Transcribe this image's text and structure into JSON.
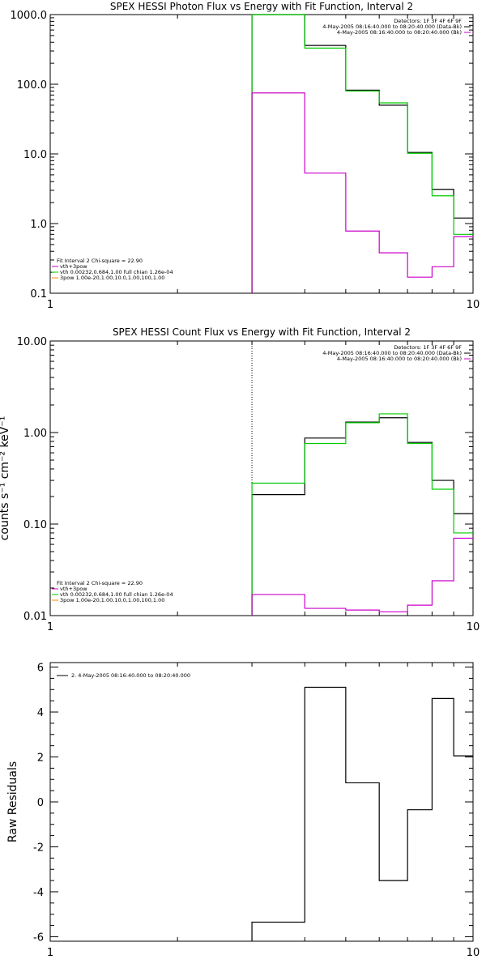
{
  "chart_data": [
    {
      "type": "step-line",
      "title": "SPEX HESSI Photon Flux vs Energy with Fit Function, Interval 2",
      "xlabel": "",
      "ylabel": "",
      "xscale": "log",
      "yscale": "log",
      "xlim": [
        1,
        10
      ],
      "ylim": [
        0.1,
        1000
      ],
      "x_ticks": [
        "1",
        "10"
      ],
      "y_ticks": [
        "0.1",
        "1.0",
        "10.0",
        "100.0",
        "1000.0"
      ],
      "bin_edges": [
        3,
        4,
        5,
        6,
        7,
        8,
        9,
        10
      ],
      "series": [
        {
          "color": "#000000",
          "values": [
            1000,
            360,
            82,
            50,
            10.5,
            3.1,
            1.2
          ]
        },
        {
          "color": "#00cc00",
          "values": [
            1000,
            330,
            80,
            54,
            10.2,
            2.5,
            0.7
          ]
        },
        {
          "color": "#cc00cc",
          "values": [
            75,
            5.3,
            0.78,
            0.38,
            0.17,
            0.24,
            0.65
          ]
        }
      ],
      "vline_x": 3,
      "legend_right": [
        "Detectors: 1F 3F 4F 6F 9F",
        "4-May-2005 08:16:40.000 to 08:20:40.000 (Data-Bk)",
        "4-May-2005 08:16:40.000 to 08:20:40.000 (Bk)"
      ],
      "legend_left": [
        "Fit Interval 2   Chi-square = 22.90",
        "vth+3pow",
        "vth 0.00232,0.684,1.00  full chian 1.26e-04",
        "3pow 1.00e-20,1.00,10.0,1.00,100,1.00"
      ],
      "legend_left_colors": [
        "#000000",
        "#cc00cc",
        "#00cc00",
        "#ff8800"
      ]
    },
    {
      "type": "step-line",
      "title": "SPEX HESSI Count Flux vs Energy with Fit Function, Interval 2",
      "xlabel": "",
      "ylabel": "counts s⁻¹ cm⁻² keV⁻¹",
      "xscale": "log",
      "yscale": "log",
      "xlim": [
        1,
        10
      ],
      "ylim": [
        0.01,
        10
      ],
      "x_ticks": [
        "1",
        "10"
      ],
      "y_ticks": [
        "0.01",
        "0.10",
        "1.00",
        "10.00"
      ],
      "bin_edges": [
        3,
        4,
        5,
        6,
        7,
        8,
        9,
        10
      ],
      "series": [
        {
          "color": "#000000",
          "values": [
            0.21,
            0.87,
            1.3,
            1.45,
            0.78,
            0.3,
            0.13
          ]
        },
        {
          "color": "#00cc00",
          "values": [
            0.28,
            0.76,
            1.28,
            1.6,
            0.76,
            0.24,
            0.08
          ]
        },
        {
          "color": "#cc00cc",
          "values": [
            0.017,
            0.012,
            0.0115,
            0.011,
            0.013,
            0.024,
            0.07
          ]
        }
      ],
      "vline_x": 3,
      "legend_right": [
        "Detectors: 1F 3F 4F 6F 9F",
        "4-May-2005 08:16:40.000 to 08:20:40.000 (Data-Bk)",
        "4-May-2005 08:16:40.000 to 08:20:40.000 (Bk)"
      ],
      "legend_left": [
        "Fit Interval 2   Chi-square = 22.90",
        "vth+3pow",
        "vth 0.00232,0.684,1.00  full chian 1.26e-04",
        "3pow 1.00e-20,1.00,10.0,1.00,100,1.00"
      ],
      "legend_left_colors": [
        "#000000",
        "#cc00cc",
        "#00cc00",
        "#ff8800"
      ]
    },
    {
      "type": "step-line",
      "title": "",
      "xlabel": "",
      "ylabel": "Raw Residuals",
      "xscale": "log",
      "yscale": "linear",
      "xlim": [
        1,
        10
      ],
      "ylim": [
        -6.2,
        6.2
      ],
      "x_ticks": [
        "1",
        "10"
      ],
      "y_ticks": [
        "-6",
        "-4",
        "-2",
        "0",
        "2",
        "4",
        "6"
      ],
      "bin_edges": [
        3,
        4,
        5,
        6,
        7,
        8,
        9,
        10
      ],
      "series": [
        {
          "color": "#000000",
          "values": [
            -5.35,
            5.1,
            0.85,
            -3.5,
            -0.35,
            4.6,
            2.05
          ]
        }
      ],
      "legend_right": [],
      "legend_left": [
        "2.  4-May-2005 08:16:40.000 to 08:20:40.000"
      ],
      "legend_left_colors": [
        "#000000"
      ]
    }
  ]
}
